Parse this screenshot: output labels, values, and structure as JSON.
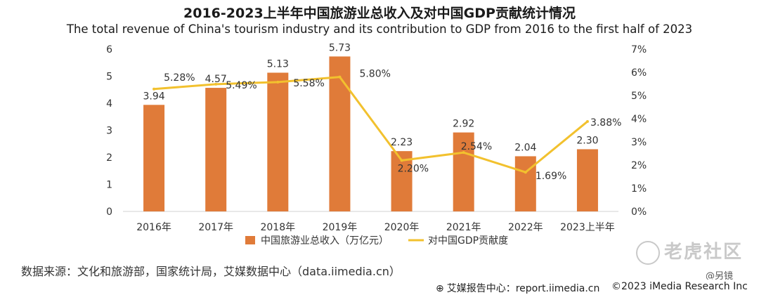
{
  "title": "2016-2023上半年中国旅游业总收入及对中国GDP贡献统计情况",
  "subtitle": "The total revenue of China's tourism industry and its contribution to GDP from 2016 to the first half of 2023",
  "source": "数据来源：文化和旅游部，国家统计局，艾媒数据中心（data.iimedia.cn）",
  "watermark": "老虎社区",
  "reporter": "@另镜",
  "footer": {
    "left": "艾媒报告中心：report.iimedia.cn",
    "right": "©2023  iMedia Research  Inc"
  },
  "colors": {
    "bar": "#E07B39",
    "line": "#F2C12E",
    "grid": "#e6e6e6"
  },
  "icons": {
    "footer": "globe-icon",
    "watermark": "tiger-logo-icon"
  },
  "chart_data": {
    "type": "bar+line",
    "categories": [
      "2016年",
      "2017年",
      "2018年",
      "2019年",
      "2020年",
      "2021年",
      "2022年",
      "2023上半年"
    ],
    "series": [
      {
        "name": "中国旅游业总收入（万亿元）",
        "type": "bar",
        "axis": "left",
        "values": [
          3.94,
          4.57,
          5.13,
          5.73,
          2.23,
          2.92,
          2.04,
          2.3
        ],
        "labels": [
          "3.94",
          "4.57",
          "5.13",
          "5.73",
          "2.23",
          "2.92",
          "2.04",
          "2.30"
        ]
      },
      {
        "name": "对中国GDP贡献度",
        "type": "line",
        "axis": "right",
        "values": [
          5.28,
          5.49,
          5.58,
          5.8,
          2.2,
          2.54,
          1.69,
          3.88
        ],
        "labels": [
          "5.28%",
          "5.49%",
          "5.58%",
          "5.80%",
          "2.20%",
          "2.54%",
          "1.69%",
          "3.88%"
        ]
      }
    ],
    "y_left": {
      "min": 0,
      "max": 6,
      "ticks": [
        "0",
        "1",
        "2",
        "3",
        "4",
        "5",
        "6"
      ]
    },
    "y_right": {
      "min": 0,
      "max": 7,
      "ticks": [
        "0%",
        "1%",
        "2%",
        "3%",
        "4%",
        "5%",
        "6%",
        "7%"
      ]
    },
    "legend_position": "bottom",
    "grid": false
  }
}
